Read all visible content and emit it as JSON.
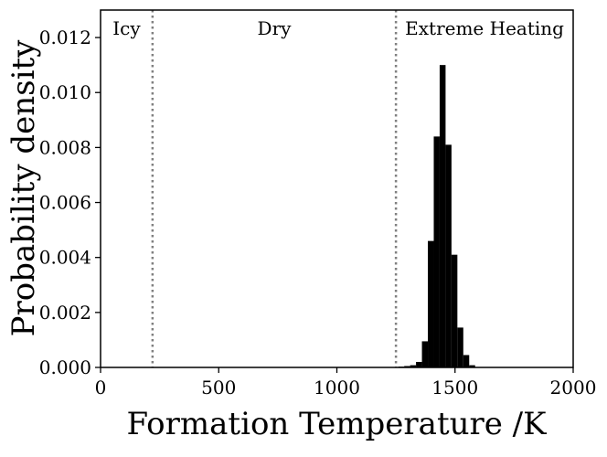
{
  "chart_data": {
    "type": "bar",
    "xlabel": "Formation Temperature /K",
    "ylabel": "Probability density",
    "xlim": [
      0,
      2000
    ],
    "ylim": [
      0,
      0.013
    ],
    "x_ticks": [
      "0",
      "500",
      "1000",
      "1500",
      "2000"
    ],
    "y_ticks": [
      "0.000",
      "0.002",
      "0.004",
      "0.006",
      "0.008",
      "0.010",
      "0.012"
    ],
    "grid": false,
    "bar_color": "#000000",
    "bins": [
      {
        "x0": 1260,
        "x1": 1285,
        "value": 3e-05
      },
      {
        "x0": 1285,
        "x1": 1310,
        "value": 5e-05
      },
      {
        "x0": 1310,
        "x1": 1335,
        "value": 8e-05
      },
      {
        "x0": 1335,
        "x1": 1360,
        "value": 0.0002
      },
      {
        "x0": 1360,
        "x1": 1385,
        "value": 0.00095
      },
      {
        "x0": 1385,
        "x1": 1410,
        "value": 0.0046
      },
      {
        "x0": 1410,
        "x1": 1435,
        "value": 0.0084
      },
      {
        "x0": 1435,
        "x1": 1460,
        "value": 0.011
      },
      {
        "x0": 1460,
        "x1": 1485,
        "value": 0.0081
      },
      {
        "x0": 1485,
        "x1": 1510,
        "value": 0.0041
      },
      {
        "x0": 1510,
        "x1": 1535,
        "value": 0.00145
      },
      {
        "x0": 1535,
        "x1": 1560,
        "value": 0.00045
      },
      {
        "x0": 1560,
        "x1": 1585,
        "value": 8e-05
      }
    ],
    "region_boundaries": [
      {
        "x": 220,
        "color": "#808080",
        "style": "dotted"
      },
      {
        "x": 1250,
        "color": "#808080",
        "style": "dotted"
      }
    ],
    "region_labels": [
      {
        "text": "Icy",
        "x": 110
      },
      {
        "text": "Dry",
        "x": 735
      },
      {
        "text": "Extreme Heating",
        "x": 1625
      }
    ]
  }
}
